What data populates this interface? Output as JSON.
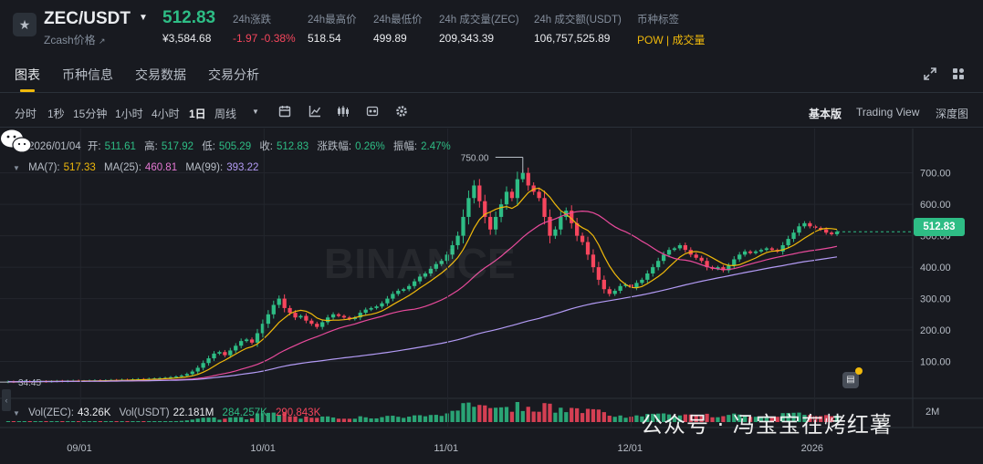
{
  "ticker": {
    "symbol": "ZEC/USDT",
    "subtitle": "Zcash价格",
    "last_price": "512.83",
    "last_price_usd": "¥3,584.68",
    "stats": [
      {
        "label": "24h涨跌",
        "value": "-1.97 -0.38%",
        "tone": "neg"
      },
      {
        "label": "24h最高价",
        "value": "518.54",
        "tone": ""
      },
      {
        "label": "24h最低价",
        "value": "499.89",
        "tone": ""
      },
      {
        "label": "24h 成交量(ZEC)",
        "value": "209,343.39",
        "tone": ""
      },
      {
        "label": "24h 成交额(USDT)",
        "value": "106,757,525.89",
        "tone": ""
      }
    ],
    "tag_label": "币种标签",
    "tag_pow": "POW",
    "tag_sep": " | ",
    "tag_vol": "成交量"
  },
  "tabs": [
    "图表",
    "币种信息",
    "交易数据",
    "交易分析"
  ],
  "toolbar": {
    "intervals": [
      "分时",
      "1秒",
      "15分钟",
      "1小时",
      "4小时",
      "1日",
      "周线"
    ],
    "active_interval": "1日",
    "views": [
      "基本版",
      "Trading View",
      "深度图"
    ],
    "active_view": "基本版"
  },
  "legend": {
    "date": "2026/01/04",
    "open_label": "开:",
    "open": "511.61",
    "high_label": "高:",
    "high": "517.92",
    "low_label": "低:",
    "low": "505.29",
    "close_label": "收:",
    "close": "512.83",
    "chg_label": "涨跌幅:",
    "chg": "0.26%",
    "amp_label": "振幅:",
    "amp": "2.47%",
    "ma7_label": "MA(7):",
    "ma7": "517.33",
    "ma25_label": "MA(25):",
    "ma25": "460.81",
    "ma99_label": "MA(99):",
    "ma99": "393.22",
    "vol_zec_label": "Vol(ZEC):",
    "vol_zec": "43.26K",
    "vol_usdt_label": "Vol(USDT)",
    "vol_usdt": "22.181M",
    "vol_a": "284.257K",
    "vol_b": "290.843K"
  },
  "chart": {
    "price_tag": "512.83",
    "max_label": "750.00",
    "min_label": "34.45",
    "watermark": "公众号 · 冯宝宝在烤红薯",
    "vol_axis": "2M",
    "colors": {
      "up": "#2ebd85",
      "down": "#f6465d",
      "ma7": "#f0b90b",
      "ma25": "#e84a9b",
      "ma99": "#b39bf5",
      "grid": "#23262d",
      "axis_text": "#b7bdc6"
    }
  },
  "chart_data": {
    "type": "candlestick",
    "x_ticks": [
      "09/01",
      "10/01",
      "11/01",
      "12/01",
      "2026"
    ],
    "y_ticks": [
      100,
      200,
      300,
      400,
      500,
      600,
      700
    ],
    "y_tick_labels": [
      "100.00",
      "200.00",
      "300.00",
      "400.00",
      "500.00",
      "600.00",
      "700.00"
    ],
    "ylim": [
      0,
      760
    ],
    "start_price": 34.45,
    "max_high": 750.0,
    "last_close": 512.83,
    "closes": [
      36,
      35,
      36,
      37,
      36,
      36,
      37,
      36,
      37,
      38,
      37,
      38,
      39,
      38,
      38,
      39,
      40,
      39,
      40,
      41,
      40,
      42,
      41,
      43,
      44,
      43,
      45,
      46,
      47,
      48,
      50,
      52,
      55,
      60,
      68,
      80,
      95,
      110,
      125,
      130,
      120,
      135,
      150,
      165,
      170,
      160,
      190,
      220,
      250,
      280,
      300,
      270,
      255,
      240,
      245,
      230,
      220,
      210,
      225,
      240,
      250,
      245,
      240,
      235,
      240,
      255,
      265,
      270,
      275,
      285,
      300,
      315,
      325,
      330,
      340,
      355,
      370,
      380,
      395,
      410,
      420,
      440,
      470,
      500,
      560,
      620,
      660,
      610,
      560,
      520,
      560,
      600,
      640,
      620,
      680,
      700,
      660,
      640,
      620,
      560,
      500,
      520,
      560,
      580,
      540,
      500,
      480,
      440,
      400,
      360,
      330,
      315,
      325,
      340,
      345,
      335,
      350,
      360,
      380,
      400,
      420,
      440,
      455,
      460,
      470,
      455,
      440,
      430,
      420,
      400,
      395,
      400,
      390,
      405,
      425,
      440,
      450,
      445,
      450,
      455,
      460,
      455,
      450,
      470,
      490,
      510,
      530,
      540,
      530,
      525,
      520,
      510,
      505,
      512.83
    ]
  }
}
